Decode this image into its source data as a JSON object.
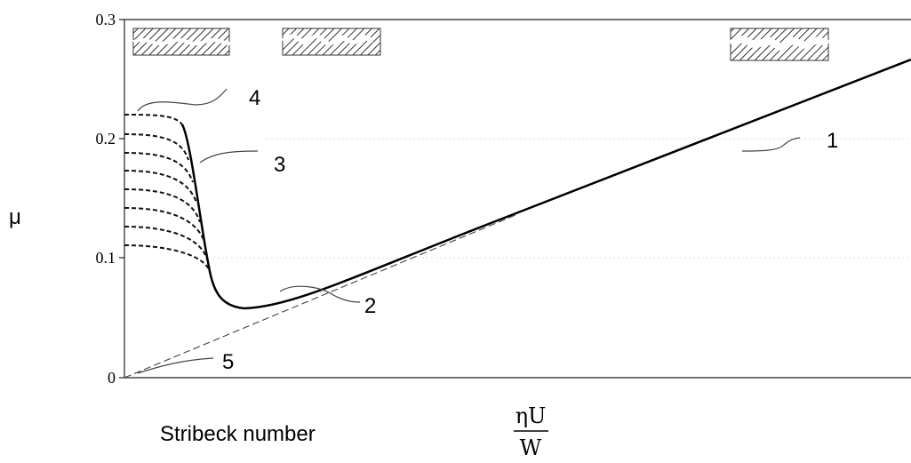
{
  "y_axis": {
    "label": "μ",
    "ticks": [
      "0.3",
      "0.2",
      "0.1",
      "0"
    ]
  },
  "callouts": [
    "1",
    "2",
    "3",
    "4",
    "5"
  ],
  "x_axis": {
    "label": "Stribeck number",
    "formula": {
      "numerator": "ηU",
      "denominator": "W"
    }
  }
}
